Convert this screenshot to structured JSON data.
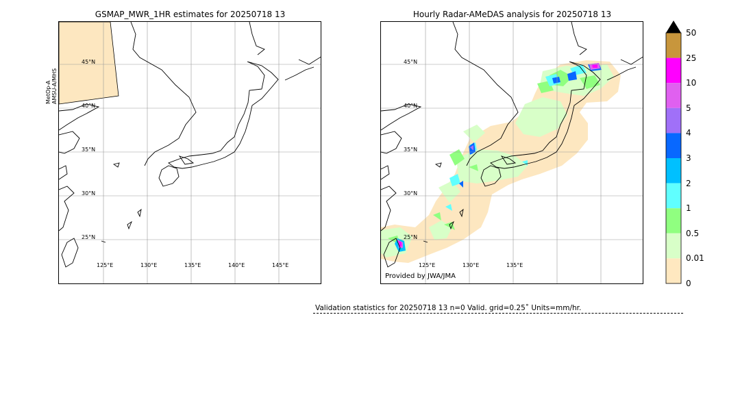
{
  "left_panel": {
    "title": "GSMAP_MWR_1HR estimates for 20250718 13",
    "sensor_line1": "MetOp-A",
    "sensor_line2": "AMSU-A/MHS",
    "lat_labels": [
      "45°N",
      "40°N",
      "35°N",
      "30°N",
      "25°N"
    ],
    "lon_labels": [
      "125°E",
      "130°E",
      "135°E",
      "140°E",
      "145°E"
    ]
  },
  "right_panel": {
    "title": "Hourly Radar-AMeDAS analysis for 20250718 13",
    "provided": "Provided by JWA/JMA",
    "lat_labels": [
      "45°N",
      "40°N",
      "35°N",
      "30°N",
      "25°N"
    ],
    "lon_labels": [
      "125°E",
      "130°E",
      "135°E"
    ]
  },
  "colorbar": {
    "labels": [
      "50",
      "25",
      "10",
      "5",
      "4",
      "3",
      "2",
      "1",
      "0.5",
      "0.01",
      "0"
    ],
    "colors": [
      "#c8963c",
      "#ff00ff",
      "#e060f0",
      "#a070f8",
      "#0868ff",
      "#00c0ff",
      "#60ffff",
      "#90ff80",
      "#d8ffc8",
      "#ffe8c0"
    ],
    "extend_color": "#000000"
  },
  "validation": {
    "text": "Validation statistics for 20250718 13  n=0 Valid. grid=0.25˚ Units=mm/hr."
  }
}
